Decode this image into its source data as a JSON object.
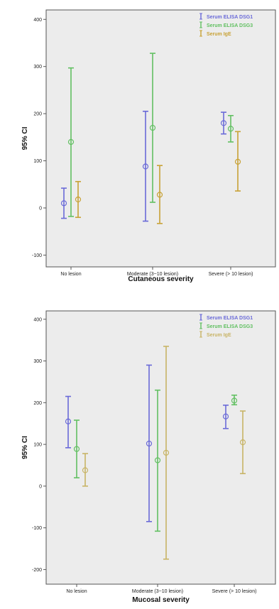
{
  "chart_data": [
    {
      "type": "errorbar",
      "ylabel": "95% CI",
      "xlabel": "Cutaneous severity",
      "categories": [
        "No lesion",
        "Moderate (3~10 lesion)",
        "Severe (> 10 lesion)"
      ],
      "ylim": [
        -125,
        420
      ],
      "yticks": [
        -100,
        0,
        100,
        200,
        300,
        400
      ],
      "grid": false,
      "legend_position": "top-right",
      "series": [
        {
          "name": "Serum ELISA DSG1",
          "color": "#6a6ad8",
          "points": [
            {
              "mean": 10,
              "low": -22,
              "high": 42
            },
            {
              "mean": 88,
              "low": -28,
              "high": 205
            },
            {
              "mean": 180,
              "low": 157,
              "high": 203
            }
          ]
        },
        {
          "name": "Serum ELISA DSG3",
          "color": "#62c062",
          "points": [
            {
              "mean": 140,
              "low": -18,
              "high": 297
            },
            {
              "mean": 170,
              "low": 12,
              "high": 328
            },
            {
              "mean": 168,
              "low": 140,
              "high": 196
            }
          ]
        },
        {
          "name": "Serum IgE",
          "color": "#c8a236",
          "points": [
            {
              "mean": 18,
              "low": -20,
              "high": 56
            },
            {
              "mean": 28,
              "low": -33,
              "high": 90
            },
            {
              "mean": 98,
              "low": 36,
              "high": 162
            }
          ]
        }
      ]
    },
    {
      "type": "errorbar",
      "ylabel": "95% CI",
      "xlabel": "Mucosal severity",
      "categories": [
        "No lesion",
        "Moderate (3~10 lesion)",
        "Severe (> 10 lesion)"
      ],
      "ylim": [
        -235,
        420
      ],
      "yticks": [
        -200,
        -100,
        0,
        100,
        200,
        300,
        400
      ],
      "grid": false,
      "legend_position": "top-right",
      "series": [
        {
          "name": "Serum ELISA DSG1",
          "color": "#6a6ad8",
          "points": [
            {
              "mean": 155,
              "low": 92,
              "high": 215
            },
            {
              "mean": 102,
              "low": -85,
              "high": 290
            },
            {
              "mean": 167,
              "low": 138,
              "high": 194
            }
          ]
        },
        {
          "name": "Serum ELISA DSG3",
          "color": "#62c062",
          "points": [
            {
              "mean": 89,
              "low": 20,
              "high": 158
            },
            {
              "mean": 62,
              "low": -108,
              "high": 230
            },
            {
              "mean": 205,
              "low": 195,
              "high": 218
            }
          ]
        },
        {
          "name": "Serum IgE",
          "color": "#c8b466",
          "points": [
            {
              "mean": 38,
              "low": 0,
              "high": 78
            },
            {
              "mean": 80,
              "low": -175,
              "high": 335
            },
            {
              "mean": 105,
              "low": 30,
              "high": 180
            }
          ]
        }
      ]
    }
  ]
}
